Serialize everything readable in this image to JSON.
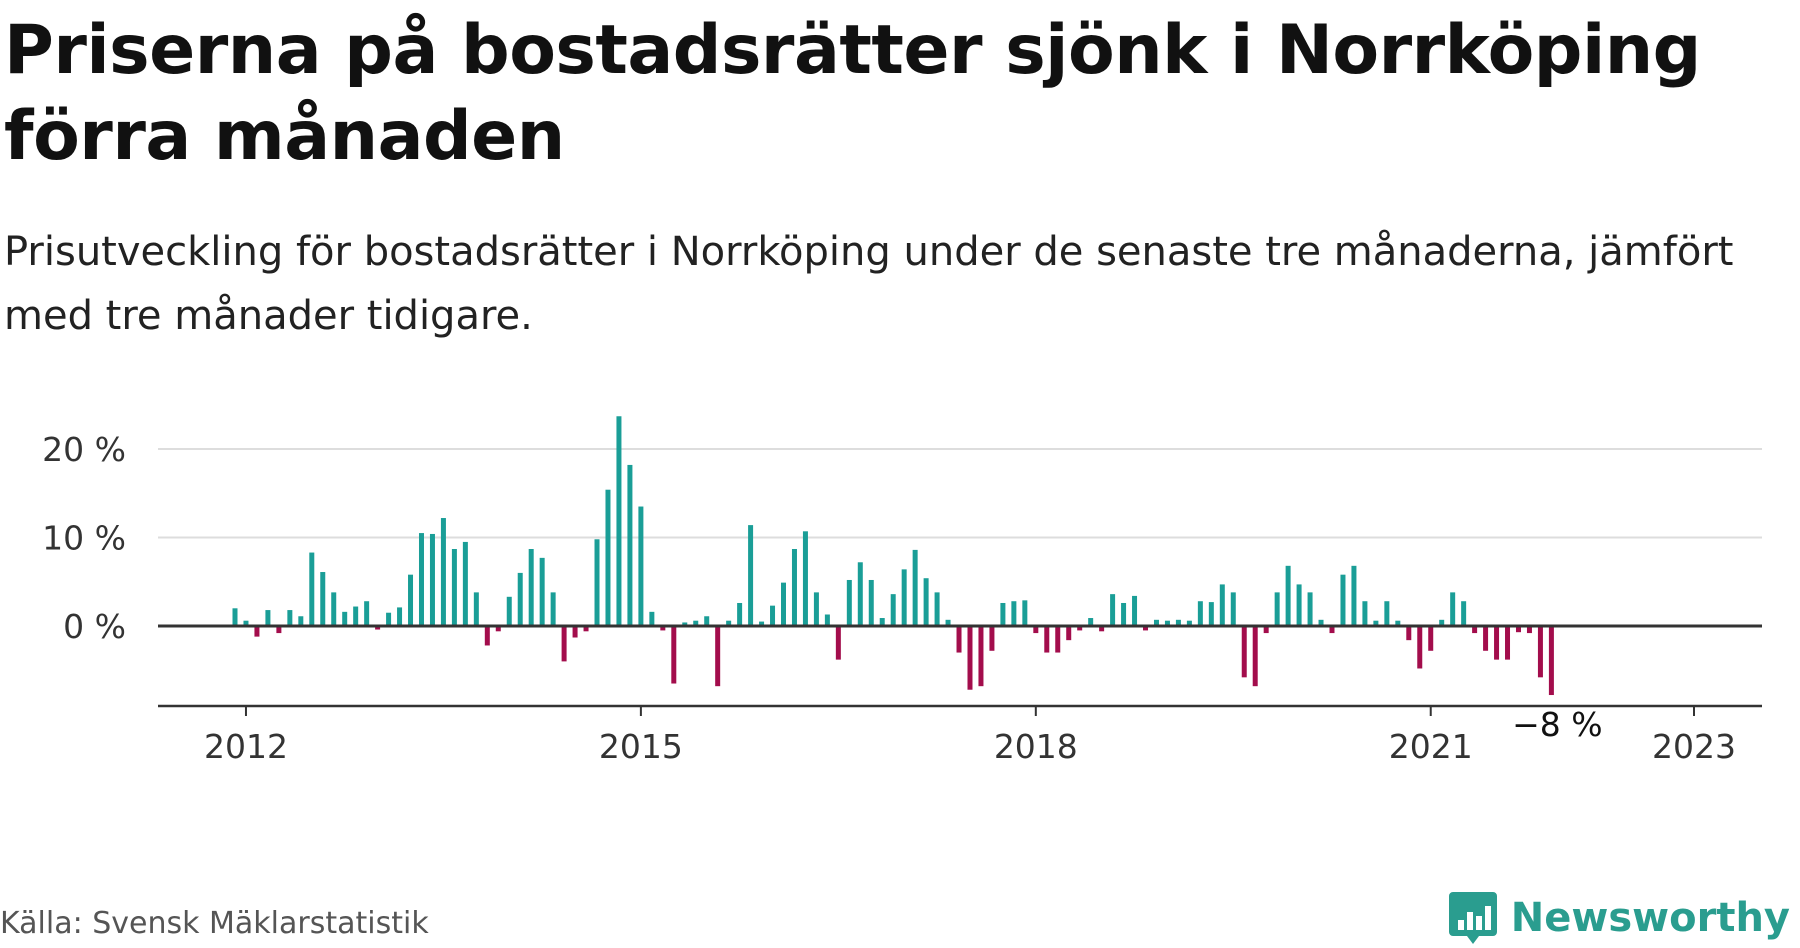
{
  "title": "Priserna på bostadsrätter sjönk i Norrköping förra månaden",
  "subtitle": "Prisutveckling för bostadsrätter i Norrköping under de senaste tre månaderna, jämfört med tre månader tidigare.",
  "source": "Källa: Svensk Mäklarstatistik",
  "brand": {
    "name": "Newsworthy",
    "icon": "newsworthy-logo-icon"
  },
  "colors": {
    "positive": "#1a9e97",
    "negative": "#a30d4c",
    "grid": "#dddddd",
    "axis": "#333333"
  },
  "chart_data": {
    "type": "bar",
    "title": "Priserna på bostadsrätter sjönk i Norrköping förra månaden",
    "subtitle": "Prisutveckling för bostadsrätter i Norrköping under de senaste tre månaderna, jämfört med tre månader tidigare.",
    "xlabel": "",
    "ylabel": "",
    "x_start": "2011-12",
    "x_ticks": [
      {
        "index": 1,
        "label": "2012"
      },
      {
        "index": 37,
        "label": "2015"
      },
      {
        "index": 73,
        "label": "2018"
      },
      {
        "index": 109,
        "label": "2021"
      },
      {
        "index": 133,
        "label": "2023"
      }
    ],
    "y_ticks": [
      {
        "value": 0,
        "label": "0 %"
      },
      {
        "value": 10,
        "label": "10 %"
      },
      {
        "value": 20,
        "label": "20 %"
      }
    ],
    "ylim": [
      -9,
      24
    ],
    "grid": true,
    "last_label": "−8 %",
    "values": [
      2.0,
      0.6,
      -1.2,
      1.8,
      -0.8,
      1.8,
      1.1,
      8.3,
      6.1,
      3.8,
      1.6,
      2.2,
      2.8,
      -0.4,
      1.5,
      2.1,
      5.8,
      10.5,
      10.4,
      12.2,
      8.7,
      9.5,
      3.8,
      -2.2,
      -0.6,
      3.3,
      6.0,
      8.7,
      7.7,
      3.8,
      -4.0,
      -1.3,
      -0.6,
      9.8,
      15.4,
      23.7,
      18.2,
      13.5,
      1.6,
      -0.5,
      -6.5,
      0.4,
      0.6,
      1.1,
      -6.8,
      0.6,
      2.6,
      11.4,
      0.5,
      2.3,
      4.9,
      8.7,
      10.7,
      3.8,
      1.3,
      -3.8,
      5.2,
      7.2,
      5.2,
      0.9,
      3.6,
      6.4,
      8.6,
      5.4,
      3.8,
      0.7,
      -3.0,
      -7.2,
      -6.8,
      -2.8,
      2.6,
      2.8,
      2.9,
      -0.8,
      -3.0,
      -3.0,
      -1.6,
      -0.5,
      0.9,
      -0.6,
      3.6,
      2.6,
      3.4,
      -0.5,
      0.7,
      0.6,
      0.7,
      0.6,
      2.8,
      2.7,
      4.7,
      3.8,
      -5.8,
      -6.8,
      -0.8,
      3.8,
      6.8,
      4.7,
      3.8,
      0.7,
      -0.8,
      5.8,
      6.8,
      2.8,
      0.6,
      2.8,
      0.6,
      -1.6,
      -4.8,
      -2.8,
      0.7,
      3.8,
      2.8,
      -0.8,
      -2.8,
      -3.8,
      -3.8,
      -0.7,
      -0.8,
      -5.8,
      -7.8
    ]
  }
}
